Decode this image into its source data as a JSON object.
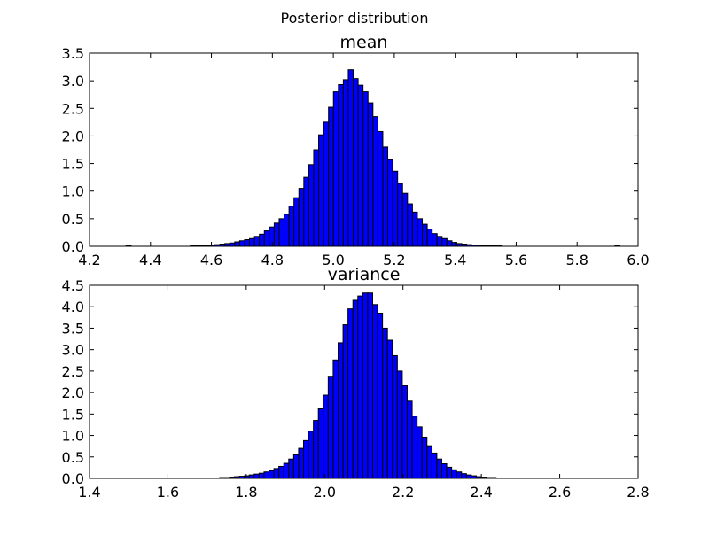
{
  "figure": {
    "suptitle": "Posterior distribution"
  },
  "chart_data": [
    {
      "type": "bar",
      "title": "mean",
      "xlabel": "",
      "ylabel": "",
      "xlim": [
        4.2,
        6.0
      ],
      "ylim": [
        0.0,
        3.5
      ],
      "xticks": [
        "4.2",
        "4.4",
        "4.6",
        "4.8",
        "5.0",
        "5.2",
        "5.4",
        "5.6",
        "5.8",
        "6.0"
      ],
      "yticks": [
        "0.0",
        "0.5",
        "1.0",
        "1.5",
        "2.0",
        "2.5",
        "3.0",
        "3.5"
      ],
      "bin_start": 4.32,
      "bin_width": 0.0162,
      "values": [
        0.01,
        0,
        0,
        0,
        0,
        0,
        0,
        0,
        0,
        0,
        0,
        0,
        0,
        0.01,
        0.01,
        0.01,
        0.01,
        0.02,
        0.03,
        0.04,
        0.05,
        0.06,
        0.08,
        0.1,
        0.12,
        0.14,
        0.18,
        0.22,
        0.28,
        0.35,
        0.42,
        0.5,
        0.58,
        0.73,
        0.88,
        1.05,
        1.25,
        1.48,
        1.75,
        2.02,
        2.25,
        2.52,
        2.8,
        2.93,
        3.02,
        3.2,
        3.04,
        2.92,
        2.8,
        2.6,
        2.35,
        2.08,
        1.8,
        1.57,
        1.36,
        1.14,
        0.96,
        0.77,
        0.62,
        0.5,
        0.4,
        0.31,
        0.23,
        0.18,
        0.14,
        0.1,
        0.07,
        0.05,
        0.04,
        0.03,
        0.02,
        0.02,
        0.01,
        0.01,
        0.01,
        0.01,
        0,
        0,
        0,
        0,
        0,
        0,
        0,
        0,
        0,
        0,
        0,
        0,
        0,
        0,
        0,
        0,
        0,
        0,
        0,
        0,
        0,
        0,
        0,
        0.01
      ]
    },
    {
      "type": "bar",
      "title": "variance",
      "xlabel": "",
      "ylabel": "",
      "xlim": [
        1.4,
        2.8
      ],
      "ylim": [
        0.0,
        4.5
      ],
      "xticks": [
        "1.4",
        "1.6",
        "1.8",
        "2.0",
        "2.2",
        "2.4",
        "2.6",
        "2.8"
      ],
      "yticks": [
        "0.0",
        "0.5",
        "1.0",
        "1.5",
        "2.0",
        "2.5",
        "3.0",
        "3.5",
        "4.0",
        "4.5"
      ],
      "bin_start": 1.48,
      "bin_width": 0.0126,
      "values": [
        0.01,
        0,
        0,
        0,
        0,
        0,
        0,
        0,
        0,
        0,
        0,
        0,
        0,
        0,
        0,
        0,
        0,
        0.01,
        0.01,
        0.01,
        0.02,
        0.02,
        0.03,
        0.04,
        0.05,
        0.06,
        0.08,
        0.1,
        0.12,
        0.15,
        0.18,
        0.23,
        0.28,
        0.35,
        0.45,
        0.55,
        0.7,
        0.88,
        1.1,
        1.35,
        1.62,
        1.94,
        2.38,
        2.76,
        3.16,
        3.58,
        3.95,
        4.15,
        4.25,
        4.32,
        4.32,
        4.05,
        3.85,
        3.5,
        3.22,
        2.86,
        2.5,
        2.16,
        1.8,
        1.45,
        1.2,
        0.96,
        0.76,
        0.59,
        0.45,
        0.34,
        0.26,
        0.2,
        0.15,
        0.11,
        0.08,
        0.06,
        0.04,
        0.03,
        0.02,
        0.02,
        0.01,
        0.01,
        0.01,
        0.01,
        0.01,
        0.01,
        0.01,
        0.01,
        0,
        0,
        0,
        0,
        0,
        0,
        0,
        0,
        0,
        0,
        0,
        0,
        0,
        0,
        0,
        0,
        0,
        0,
        0
      ]
    }
  ]
}
